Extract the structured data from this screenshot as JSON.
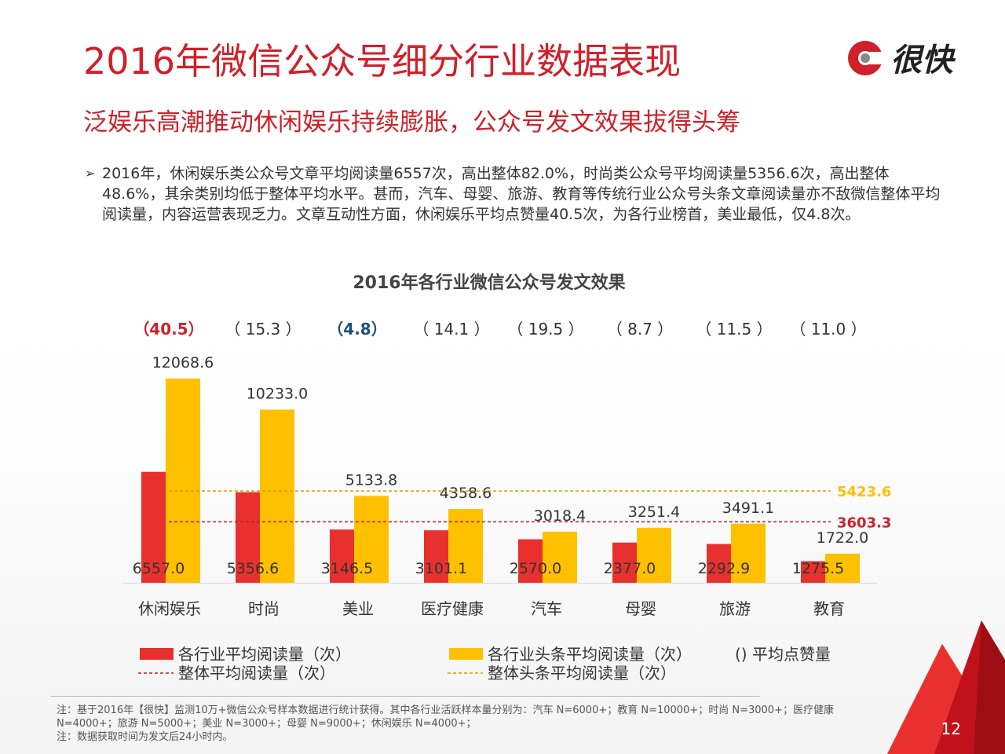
{
  "title": "2016年微信公众号细分行业数据表现",
  "subtitle": "泛娱乐高潮推动休闲娱乐持续膨胀，公众号发文效果拔得头筹",
  "logo_text": "很快",
  "bullet": "2016年，休闲娱乐类公众号文章平均阅读量6557次，高出整体82.0%，时尚类公众号平均阅读量5356.6次，高出整体48.6%，其余类别均低于整体平均水平。甚而，汽车、母婴、旅游、教育等传统行业公众号头条文章阅读量亦不敌微信整体平均阅读量，内容运营表现乏力。文章互动性方面，休闲娱乐平均点赞量40.5次，为各行业榜首，美业最低，仅4.8次。",
  "chart_data": {
    "type": "bar",
    "title": "2016年各行业微信公众号发文效果",
    "categories": [
      "休闲娱乐",
      "时尚",
      "美业",
      "医疗健康",
      "汽车",
      "母婴",
      "旅游",
      "教育"
    ],
    "series": [
      {
        "name": "各行业平均阅读量（次）",
        "values": [
          6557.0,
          5356.6,
          3146.5,
          3101.1,
          2570.0,
          2377.0,
          2292.9,
          1275.5
        ],
        "labels": [
          "6557.0",
          "5356.6",
          "3146.5",
          "3101.1",
          "2570.0",
          "2377.0",
          "2292.9",
          "1275.5"
        ],
        "color": "#e8312e"
      },
      {
        "name": "各行业头条平均阅读量（次）",
        "values": [
          12068.6,
          10233.0,
          5133.8,
          4358.6,
          3018.4,
          3251.4,
          3491.1,
          1722.0
        ],
        "labels": [
          "12068.6",
          "10233.0",
          "5133.8",
          "4358.6",
          "3018.4",
          "3251.4",
          "3491.1",
          "1722.0"
        ],
        "color": "#ffc000"
      }
    ],
    "likes": [
      "（40.5）",
      "（ 15.3 ）",
      "（4.8）",
      "（ 14.1 ）",
      "（ 19.5 ）",
      "（ 8.7 ）",
      "（ 11.5 ）",
      "（ 11.0 ）"
    ],
    "likes_highlight": {
      "0": "#d0202a",
      "2": "#1f4e79"
    },
    "reference_lines": [
      {
        "name": "整体平均阅读量（次）",
        "value": 3603.3,
        "label": "3603.3",
        "color": "#b22222",
        "label_color": "#d0202a"
      },
      {
        "name": "整体头条平均阅读量（次）",
        "value": 5423.6,
        "label": "5423.6",
        "color": "#c8a000",
        "label_color": "#ffc000"
      }
    ],
    "likes_legend": "() 平均点赞量",
    "ylim": [
      0,
      12500
    ],
    "grid": false,
    "legend_position": "bottom"
  },
  "notes": [
    "注：基于2016年【很快】监测10万+微信公众号样本数据进行统计获得。其中各行业活跃样本量分别为：汽车 N=6000+；教育 N=10000+；时尚 N=3000+；医疗健康",
    "N=4000+；旅游 N=5000+；美业 N=3000+；母婴 N=9000+；休闲娱乐 N=4000+；",
    "注：数据获取时间为发文后24小时内。"
  ],
  "page_number": "12"
}
